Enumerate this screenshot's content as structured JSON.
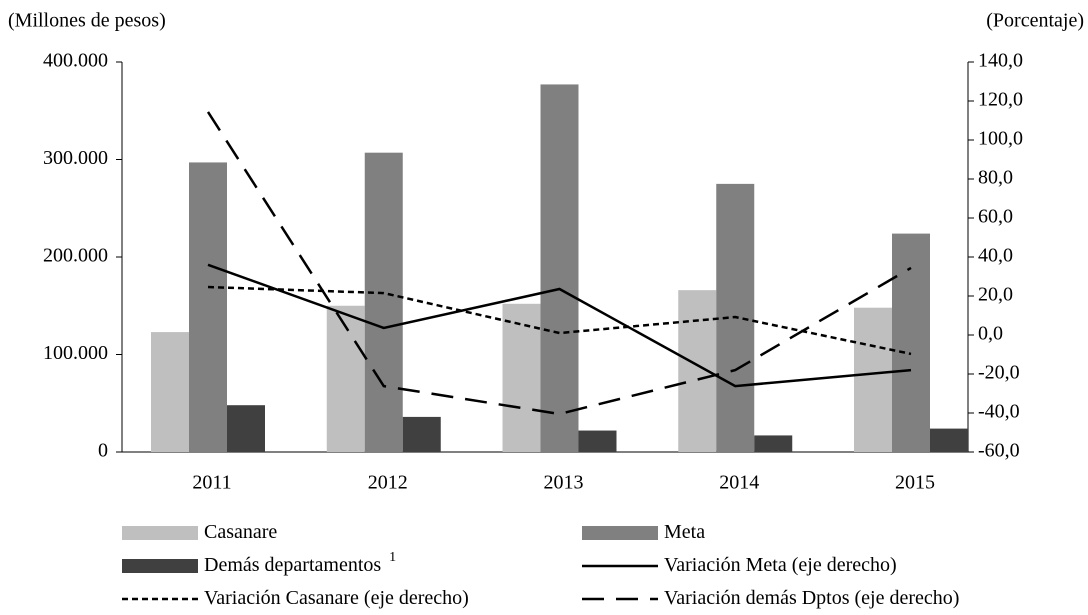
{
  "chart_data": {
    "type": "bar",
    "y_label": "(Millones de pesos)",
    "y2_label": "(Porcentaje)",
    "categories": [
      "2011",
      "2012",
      "2013",
      "2014",
      "2015"
    ],
    "series": [
      {
        "name": "Casanare",
        "type": "bar",
        "color": "#bfbfbf",
        "values": [
          123000,
          150000,
          152000,
          166000,
          148000
        ]
      },
      {
        "name": "Meta",
        "type": "bar",
        "color": "#808080",
        "values": [
          297000,
          307000,
          377000,
          275000,
          224000
        ]
      },
      {
        "name": "Demás  departamentos",
        "note_marker": "1",
        "type": "bar",
        "color": "#404040",
        "values": [
          48000,
          36000,
          22000,
          17000,
          24000
        ]
      },
      {
        "name": "Variación Meta (eje derecho)",
        "type": "line",
        "axis": "y2",
        "color": "#000000",
        "dash": "solid",
        "values": [
          36.0,
          3.6,
          23.6,
          -26.2,
          -18.0
        ]
      },
      {
        "name": "Variación Casanare (eje derecho)",
        "type": "line",
        "axis": "y2",
        "color": "#000000",
        "dash": "short",
        "values": [
          24.6,
          21.5,
          1.0,
          9.2,
          -9.7
        ]
      },
      {
        "name": "Variación demás Dptos (eje derecho)",
        "type": "line",
        "axis": "y2",
        "color": "#000000",
        "dash": "long",
        "values": [
          114.4,
          -26.2,
          -40.5,
          -18.0,
          34.4
        ]
      }
    ],
    "ylim": [
      0,
      400000
    ],
    "yticks": [
      0,
      {
        "value": 100000,
        "label": "100.000"
      },
      {
        "value": 200000,
        "label": "200.000"
      },
      {
        "value": 300000,
        "label": "300.000"
      },
      {
        "value": 400000,
        "label": "400.000"
      }
    ],
    "y2lim": [
      -60,
      140
    ],
    "y2ticks": [
      {
        "value": -60,
        "label": "-60,0"
      },
      {
        "value": -40,
        "label": "-40,0"
      },
      {
        "value": -20,
        "label": "-20,0"
      },
      {
        "value": 0,
        "label": "0,0"
      },
      {
        "value": 20,
        "label": "20,0"
      },
      {
        "value": 40,
        "label": "40,0"
      },
      {
        "value": 60,
        "label": "60,0"
      },
      {
        "value": 80,
        "label": "80,0"
      },
      {
        "value": 100,
        "label": "100,0"
      },
      {
        "value": 120,
        "label": "120,0"
      },
      {
        "value": 140,
        "label": "140,0"
      }
    ],
    "grid": false
  }
}
